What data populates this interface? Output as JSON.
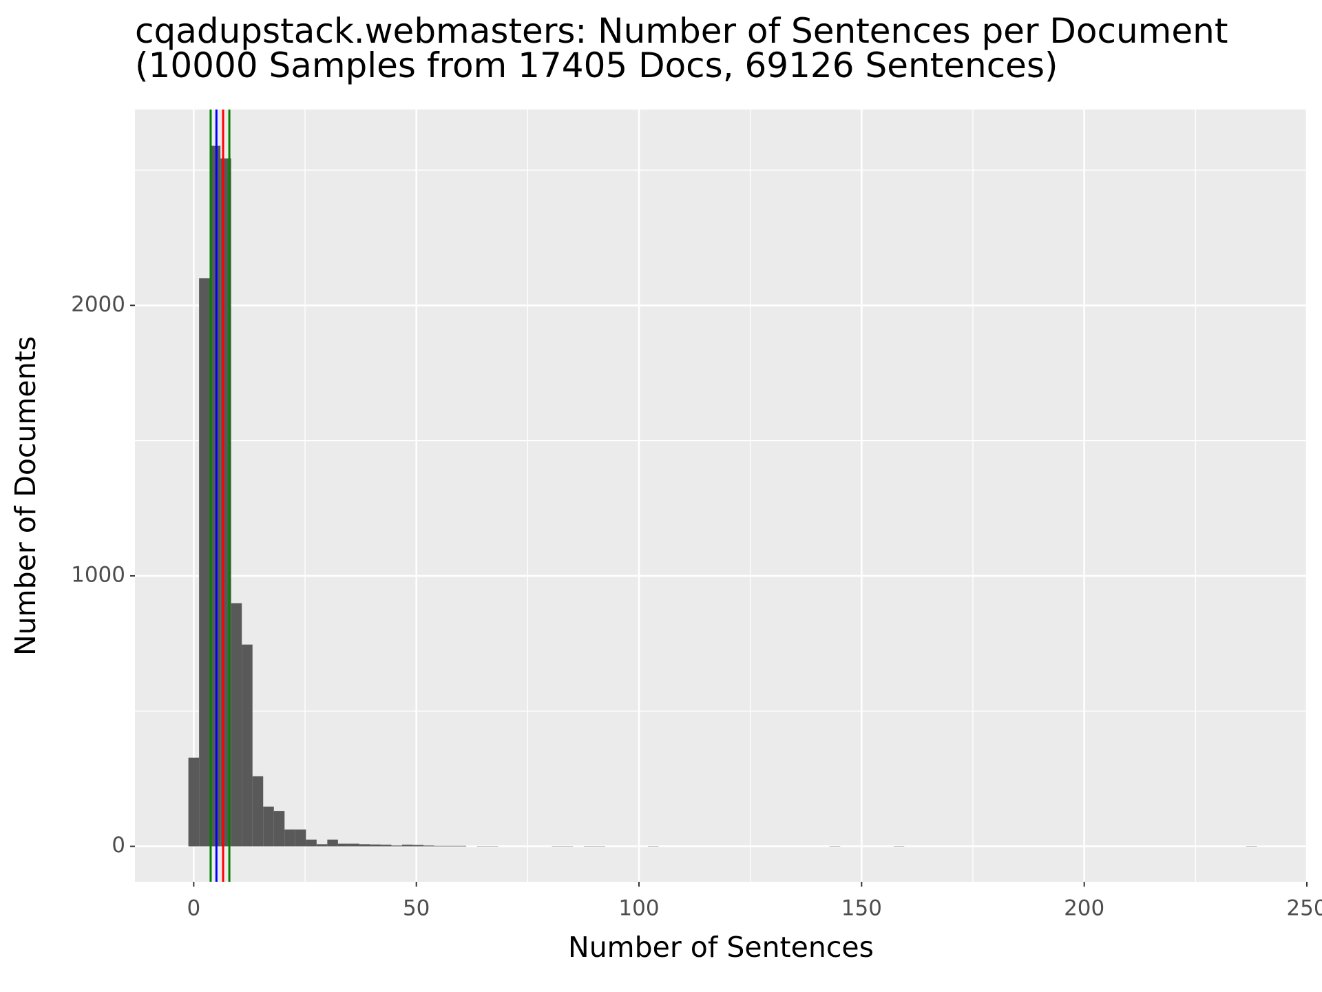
{
  "chart_data": {
    "type": "histogram",
    "title": "cqadupstack.webmasters: Number of Sentences per Document",
    "subtitle": "(10000 Samples from 17405 Docs, 69126 Sentences)",
    "x_label": "Number of Sentences",
    "y_label": "Number of Documents",
    "bins": [
      -1.2,
      1.2,
      3.6,
      6,
      8.4,
      10.8,
      13.2,
      15.6,
      18,
      20.4,
      22.8,
      25.2,
      27.6,
      30,
      32.4,
      34.8,
      37.2,
      39.6,
      42,
      44.4,
      46.8,
      49.2,
      51.6,
      54,
      56.4,
      58.8,
      61.2,
      63.6,
      66,
      68.4,
      70.8,
      73.2,
      75.6,
      78,
      80.4,
      82.8,
      85.2,
      87.6,
      90,
      92.4,
      94.8,
      97.2,
      99.6,
      102,
      104.4,
      106.8,
      109.2,
      111.6,
      114,
      116.4,
      118.8,
      121.2,
      123.6,
      126,
      128.4,
      130.8,
      133.2,
      135.6,
      138,
      140.4,
      142.8,
      145.2,
      147.6,
      150,
      152.4,
      154.8,
      157.2,
      159.6,
      162,
      164.4,
      166.8,
      169.2,
      171.6,
      174,
      176.4,
      178.8,
      181.2,
      183.6,
      186,
      188.4,
      190.8,
      193.2,
      195.6,
      198,
      200.4,
      202.8,
      205.2,
      207.6,
      210,
      212.4,
      214.8,
      217.2,
      219.6,
      222,
      224.4,
      226.8,
      229.2,
      231.6,
      234,
      236.4,
      238.8
    ],
    "values": [
      328,
      2100,
      2590,
      2543,
      899,
      746,
      259,
      147,
      131,
      62,
      62,
      25,
      8,
      25,
      10,
      10,
      8,
      7,
      6,
      3,
      6,
      5,
      3,
      2,
      2,
      2,
      0,
      1,
      1,
      0,
      0,
      0,
      0,
      0,
      1,
      1,
      0,
      1,
      1,
      0,
      0,
      0,
      0,
      1,
      0,
      0,
      0,
      0,
      0,
      0,
      0,
      0,
      0,
      0,
      0,
      0,
      0,
      0,
      0,
      0,
      1,
      0,
      0,
      0,
      0,
      0,
      1,
      0,
      0,
      0,
      0,
      0,
      0,
      0,
      0,
      0,
      0,
      0,
      0,
      0,
      0,
      0,
      0,
      0,
      0,
      0,
      0,
      0,
      0,
      0,
      0,
      0,
      0,
      0,
      0,
      0,
      0,
      0,
      0,
      1
    ],
    "color": "#595959",
    "vlines": [
      {
        "value": 3.8,
        "color": "#008000"
      },
      {
        "value": 5.1,
        "color": "#0000ff"
      },
      {
        "value": 6.6,
        "color": "#ff0000"
      },
      {
        "value": 8.0,
        "color": "#008000"
      }
    ],
    "xlim": [
      -13.2,
      250
    ],
    "xticks": [
      0,
      50,
      100,
      150,
      200,
      250
    ],
    "xminor": [
      25,
      75,
      125,
      175,
      225
    ],
    "ylim": [
      -131,
      2724
    ],
    "yticks": [
      0,
      1000,
      2000
    ],
    "yminor": [
      500,
      1500,
      2500
    ],
    "grid": true
  }
}
